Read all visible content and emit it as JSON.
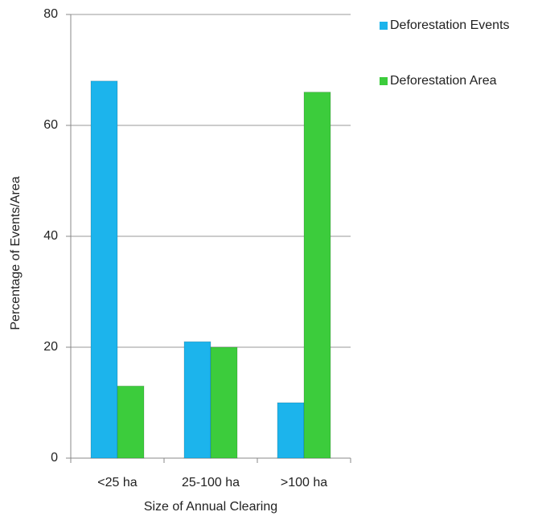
{
  "chart_data": {
    "type": "bar",
    "x_label": "Size of Annual Clearing",
    "y_label": "Percentage of Events/Area",
    "categories": [
      "<25 ha",
      "25-100 ha",
      ">100 ha"
    ],
    "series": [
      {
        "name": "Deforestation Events",
        "color": "#1cb4ec",
        "values": [
          68,
          21,
          10
        ]
      },
      {
        "name": "Deforestation Area",
        "color": "#3ccc3c",
        "values": [
          13,
          20,
          66
        ]
      }
    ],
    "ylim": [
      0,
      80
    ],
    "yticks": [
      0,
      20,
      40,
      60,
      80
    ],
    "grid": true,
    "legend": "right"
  }
}
